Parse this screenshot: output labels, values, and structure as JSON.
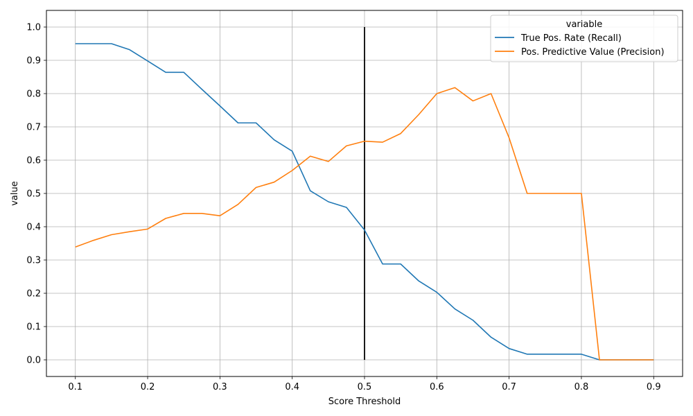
{
  "chart_data": {
    "type": "line",
    "xlabel": "Score Threshold",
    "ylabel": "value",
    "xlim": [
      0.06,
      0.94
    ],
    "ylim": [
      -0.05,
      1.05
    ],
    "xticks": [
      "0.1",
      "0.2",
      "0.3",
      "0.4",
      "0.5",
      "0.6",
      "0.7",
      "0.8",
      "0.9"
    ],
    "yticks": [
      "0.0",
      "0.1",
      "0.2",
      "0.3",
      "0.4",
      "0.5",
      "0.6",
      "0.7",
      "0.8",
      "0.9",
      "1.0"
    ],
    "grid": true,
    "legend": {
      "title": "variable",
      "placement": "top-right"
    },
    "x": [
      0.1,
      0.125,
      0.15,
      0.175,
      0.2,
      0.225,
      0.25,
      0.275,
      0.3,
      0.325,
      0.35,
      0.375,
      0.4,
      0.425,
      0.45,
      0.475,
      0.5,
      0.525,
      0.55,
      0.575,
      0.6,
      0.625,
      0.65,
      0.675,
      0.7,
      0.725,
      0.75,
      0.775,
      0.8,
      0.825,
      0.85,
      0.875,
      0.9
    ],
    "series": [
      {
        "name": "True Pos. Rate (Recall)",
        "color": "#1f77b4",
        "values": [
          0.95,
          0.95,
          0.95,
          0.932,
          0.898,
          0.864,
          0.864,
          0.813,
          0.763,
          0.712,
          0.712,
          0.661,
          0.627,
          0.508,
          0.475,
          0.458,
          0.39,
          0.288,
          0.288,
          0.237,
          0.203,
          0.153,
          0.119,
          0.068,
          0.034,
          0.017,
          0.017,
          0.017,
          0.017,
          0.0,
          0.0,
          0.0,
          0.0
        ]
      },
      {
        "name": "Pos. Predictive Value (Precision)",
        "color": "#ff7f0e",
        "values": [
          0.339,
          0.359,
          0.376,
          0.385,
          0.393,
          0.425,
          0.44,
          0.44,
          0.433,
          0.467,
          0.518,
          0.534,
          0.569,
          0.612,
          0.596,
          0.643,
          0.657,
          0.654,
          0.68,
          0.737,
          0.8,
          0.818,
          0.778,
          0.8,
          0.667,
          0.5,
          0.5,
          0.5,
          0.5,
          0.0,
          0.0,
          0.0,
          0.0
        ]
      }
    ],
    "reference_line": {
      "x": 0.5,
      "y_from": 0.0,
      "y_to": 1.0,
      "color": "#000000"
    }
  }
}
